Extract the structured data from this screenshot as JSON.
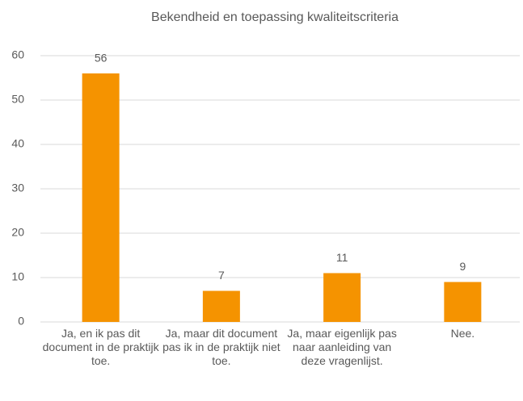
{
  "chart_data": {
    "type": "bar",
    "title": "Bekendheid en toepassing kwaliteitscriteria",
    "categories": [
      "Ja, en ik pas dit document in de praktijk toe.",
      "Ja, maar dit document pas ik in de praktijk niet toe.",
      "Ja, maar eigenlijk pas naar aanleiding van deze vragenlijst.",
      "Nee."
    ],
    "values": [
      56,
      7,
      11,
      9
    ],
    "color": "#f59300",
    "ylim": [
      0,
      60
    ],
    "yticks": [
      0,
      10,
      20,
      30,
      40,
      50,
      60
    ],
    "grid": true,
    "data_labels": true
  }
}
